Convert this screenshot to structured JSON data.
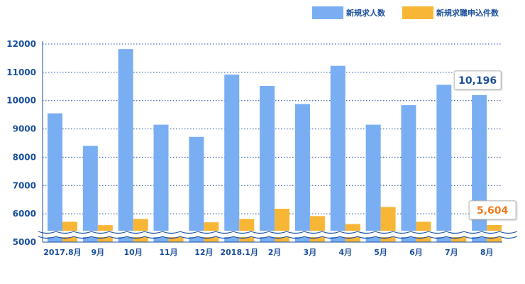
{
  "chart_data": {
    "type": "bar",
    "categories": [
      "2017.8月",
      "9月",
      "10月",
      "11月",
      "12月",
      "2018.1月",
      "2月",
      "3月",
      "4月",
      "5月",
      "6月",
      "7月",
      "8月"
    ],
    "series": [
      {
        "name": "新規求人数",
        "color": "#7aaef3",
        "values": [
          9550,
          8400,
          11820,
          9150,
          8720,
          10920,
          10520,
          9880,
          11230,
          9150,
          9840,
          10560,
          10196
        ]
      },
      {
        "name": "新規求職申込件数",
        "color": "#f8b637",
        "values": [
          5720,
          5600,
          5820,
          5300,
          5700,
          5820,
          6180,
          5920,
          5640,
          6240,
          5720,
          5380,
          5604
        ]
      }
    ],
    "ylim": [
      5000,
      12000
    ],
    "yticks": [
      5000,
      6000,
      7000,
      8000,
      9000,
      10000,
      11000,
      12000
    ],
    "axis_break": true,
    "grid": true,
    "legend_position": "top-right",
    "annotations": [
      {
        "series_index": 0,
        "category_index": 12,
        "text": "10,196",
        "color": "#1b4f9c"
      },
      {
        "series_index": 1,
        "category_index": 12,
        "text": "5,604",
        "color": "#f07a1a"
      }
    ]
  }
}
